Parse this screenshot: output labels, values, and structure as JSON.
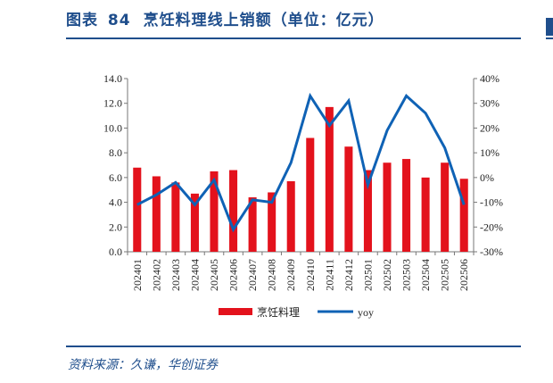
{
  "header": {
    "prefix": "图表",
    "number": "84",
    "title": "烹饪料理线上销额（单位：亿元）"
  },
  "source": "资料来源：久谦，华创证券",
  "colors": {
    "bar": "#e3121c",
    "line": "#0f62b5",
    "accent": "#1f4e8c"
  },
  "chart_data": {
    "type": "bar+line",
    "categories": [
      "202401",
      "202402",
      "202403",
      "202404",
      "202405",
      "202406",
      "202407",
      "202408",
      "202409",
      "202410",
      "202411",
      "202412",
      "202501",
      "202502",
      "202503",
      "202504",
      "202505",
      "202506"
    ],
    "series": [
      {
        "name": "烹饪料理",
        "type": "bar",
        "axis": "left",
        "values": [
          6.8,
          6.1,
          5.6,
          4.7,
          6.5,
          6.6,
          4.4,
          4.8,
          5.7,
          9.2,
          11.7,
          8.5,
          6.6,
          7.2,
          7.5,
          6.0,
          7.2,
          5.9
        ]
      },
      {
        "name": "yoy",
        "type": "line",
        "axis": "right",
        "values": [
          -11,
          -7,
          -2,
          -11,
          -1,
          -21,
          -9,
          -10,
          6,
          33,
          21,
          31,
          -3,
          19,
          33,
          26,
          12,
          -11
        ]
      }
    ],
    "left_axis": {
      "range": [
        0,
        14
      ],
      "ticks": [
        "0.0",
        "2.0",
        "4.0",
        "6.0",
        "8.0",
        "10.0",
        "12.0",
        "14.0"
      ]
    },
    "right_axis": {
      "range": [
        -30,
        40
      ],
      "unit": "%",
      "ticks": [
        "-30%",
        "-20%",
        "-10%",
        "0%",
        "10%",
        "20%",
        "30%",
        "40%"
      ]
    },
    "grid": false,
    "legend": "bottom"
  }
}
